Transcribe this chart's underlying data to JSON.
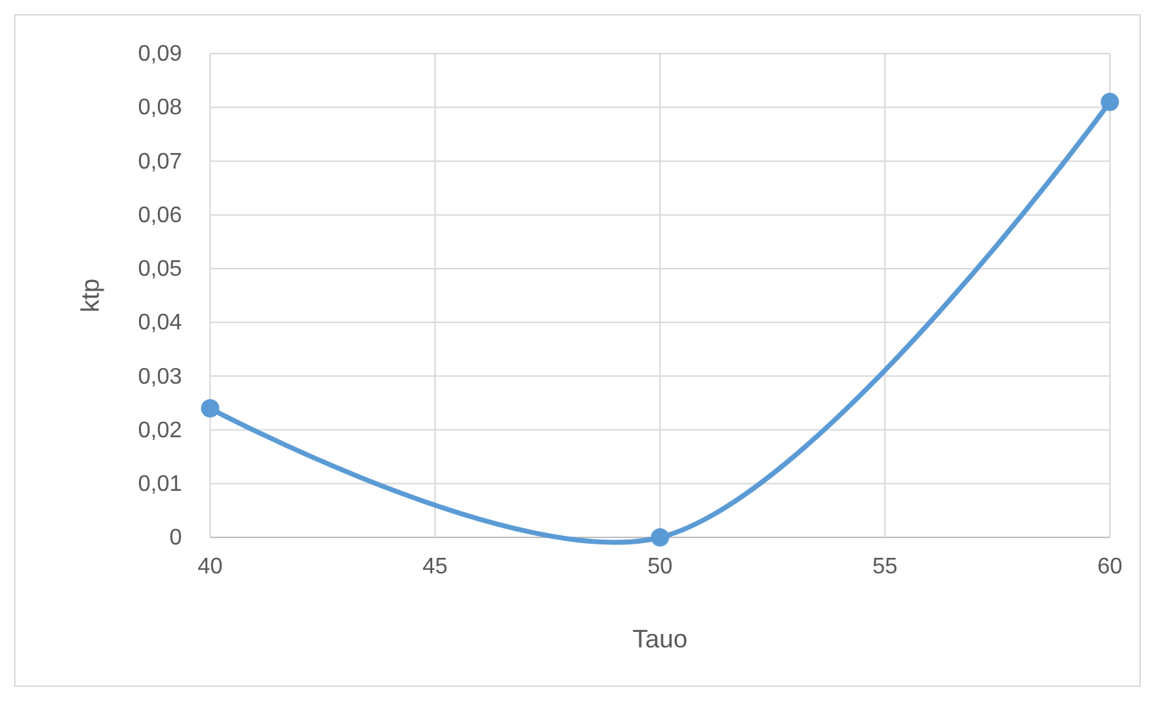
{
  "chart_data": {
    "type": "line",
    "xlabel": "Tauo",
    "ylabel": "ktp",
    "x": [
      40,
      50,
      60
    ],
    "series": [
      {
        "color": "#5b9bd5",
        "values": [
          0.024,
          0,
          0.081
        ]
      }
    ],
    "xlim": [
      40,
      60
    ],
    "xticks": [
      40,
      45,
      50,
      55,
      60
    ],
    "ylim": [
      0,
      0.09
    ],
    "yticks": [
      0,
      {
        "value": 0.01,
        "label": "0,01"
      },
      {
        "value": 0.02,
        "label": "0,02"
      },
      {
        "value": 0.03,
        "label": "0,03"
      },
      {
        "value": 0.04,
        "label": "0,04"
      },
      {
        "value": 0.05,
        "label": "0,05"
      },
      {
        "value": 0.06,
        "label": "0,06"
      },
      {
        "value": 0.07,
        "label": "0,07"
      },
      {
        "value": 0.08,
        "label": "0,08"
      },
      {
        "value": 0.09,
        "label": "0,09"
      }
    ],
    "grid": true,
    "marker": "circle",
    "line_style": "solid"
  }
}
